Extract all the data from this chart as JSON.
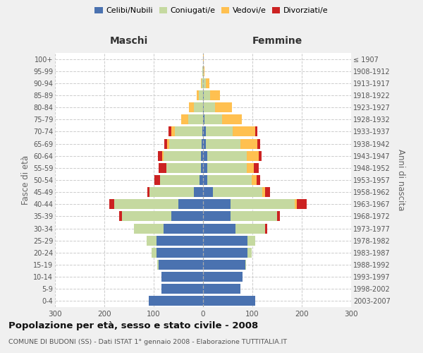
{
  "age_groups": [
    "0-4",
    "5-9",
    "10-14",
    "15-19",
    "20-24",
    "25-29",
    "30-34",
    "35-39",
    "40-44",
    "45-49",
    "50-54",
    "55-59",
    "60-64",
    "65-69",
    "70-74",
    "75-79",
    "80-84",
    "85-89",
    "90-94",
    "95-99",
    "100+"
  ],
  "birth_years": [
    "2003-2007",
    "1998-2002",
    "1993-1997",
    "1988-1992",
    "1983-1987",
    "1978-1982",
    "1973-1977",
    "1968-1972",
    "1963-1967",
    "1958-1962",
    "1953-1957",
    "1948-1952",
    "1943-1947",
    "1938-1942",
    "1933-1937",
    "1928-1932",
    "1923-1927",
    "1918-1922",
    "1913-1917",
    "1908-1912",
    "≤ 1907"
  ],
  "males": {
    "celibi": [
      110,
      85,
      85,
      90,
      95,
      95,
      80,
      65,
      50,
      18,
      7,
      5,
      5,
      3,
      2,
      0,
      0,
      0,
      0,
      0,
      0
    ],
    "coniugati": [
      0,
      0,
      0,
      3,
      10,
      20,
      60,
      100,
      130,
      90,
      80,
      70,
      75,
      65,
      55,
      30,
      18,
      8,
      3,
      1,
      0
    ],
    "vedovi": [
      0,
      0,
      0,
      0,
      0,
      0,
      0,
      0,
      0,
      0,
      0,
      0,
      3,
      5,
      8,
      15,
      10,
      5,
      2,
      0,
      0
    ],
    "divorziati": [
      0,
      0,
      0,
      0,
      0,
      0,
      0,
      5,
      10,
      5,
      12,
      15,
      8,
      5,
      5,
      0,
      0,
      0,
      0,
      0,
      0
    ]
  },
  "females": {
    "nubili": [
      105,
      75,
      80,
      85,
      90,
      90,
      65,
      55,
      55,
      20,
      8,
      8,
      8,
      5,
      5,
      3,
      2,
      2,
      0,
      0,
      0
    ],
    "coniugate": [
      0,
      0,
      0,
      2,
      8,
      15,
      60,
      95,
      130,
      100,
      90,
      80,
      80,
      70,
      55,
      35,
      22,
      12,
      5,
      1,
      0
    ],
    "vedove": [
      0,
      0,
      0,
      0,
      0,
      0,
      0,
      0,
      5,
      5,
      10,
      15,
      25,
      35,
      45,
      40,
      35,
      20,
      8,
      2,
      1
    ],
    "divorziate": [
      0,
      0,
      0,
      0,
      0,
      0,
      5,
      5,
      20,
      10,
      8,
      10,
      5,
      5,
      5,
      0,
      0,
      0,
      0,
      0,
      0
    ]
  },
  "colors": {
    "celibi": "#4a72b0",
    "coniugati": "#c5d9a0",
    "vedovi": "#ffc050",
    "divorziati": "#cc2222"
  },
  "title": "Popolazione per età, sesso e stato civile - 2008",
  "subtitle": "COMUNE DI BUDONI (SS) - Dati ISTAT 1° gennaio 2008 - Elaborazione TUTTITALIA.IT",
  "xlabel_left": "Maschi",
  "xlabel_right": "Femmine",
  "ylabel_left": "Fasce di età",
  "ylabel_right": "Anni di nascita",
  "xlim": 300,
  "bg_color": "#f0f0f0",
  "plot_bg": "#ffffff",
  "legend_labels": [
    "Celibi/Nubili",
    "Coniugati/e",
    "Vedovi/e",
    "Divorziati/e"
  ]
}
